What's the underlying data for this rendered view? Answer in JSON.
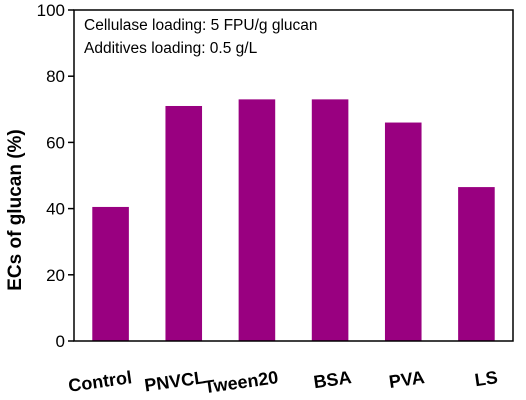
{
  "chart_data": {
    "type": "bar",
    "categories": [
      "Control",
      "PNVCL",
      "Tween20",
      "BSA",
      "PVA",
      "LS"
    ],
    "values": [
      40.5,
      71,
      73,
      73,
      66,
      46.5
    ],
    "ylabel": "ECs of glucan (%)",
    "xlabel": "",
    "ylim": [
      0,
      100
    ],
    "yticks": [
      0,
      20,
      40,
      60,
      80,
      100
    ],
    "annotations": [
      "Cellulase loading: 5 FPU/g glucan",
      "Additives loading: 0.5 g/L"
    ],
    "bar_color": "#990080",
    "grid": false,
    "legend": "none"
  }
}
